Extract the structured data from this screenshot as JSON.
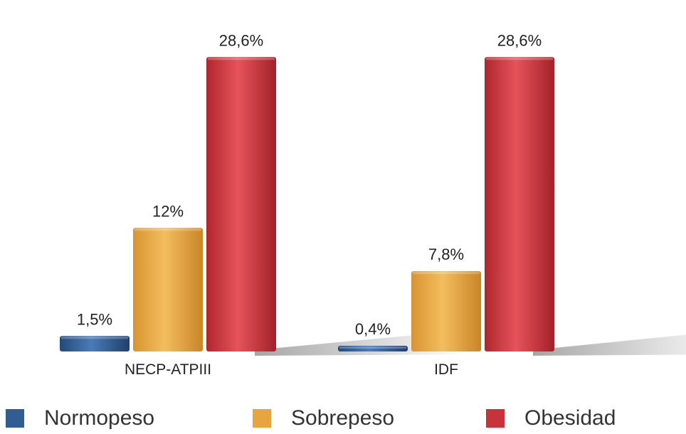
{
  "chart_data": {
    "type": "bar",
    "categories": [
      "NECP-ATPIII",
      "IDF"
    ],
    "series": [
      {
        "name": "Normopeso",
        "values": [
          1.5,
          0.4
        ],
        "labels": [
          "1,5%",
          "0,4%"
        ],
        "color": "#2f5d94"
      },
      {
        "name": "Sobrepeso",
        "values": [
          12,
          7.8
        ],
        "labels": [
          "12%",
          "7,8%"
        ],
        "color": "#e8a53e"
      },
      {
        "name": "Obesidad",
        "values": [
          28.6,
          28.6
        ],
        "labels": [
          "28,6%",
          "28,6%"
        ],
        "color": "#c8333b"
      }
    ],
    "ylim": [
      0,
      30
    ],
    "grid": false,
    "legend_position": "bottom"
  }
}
